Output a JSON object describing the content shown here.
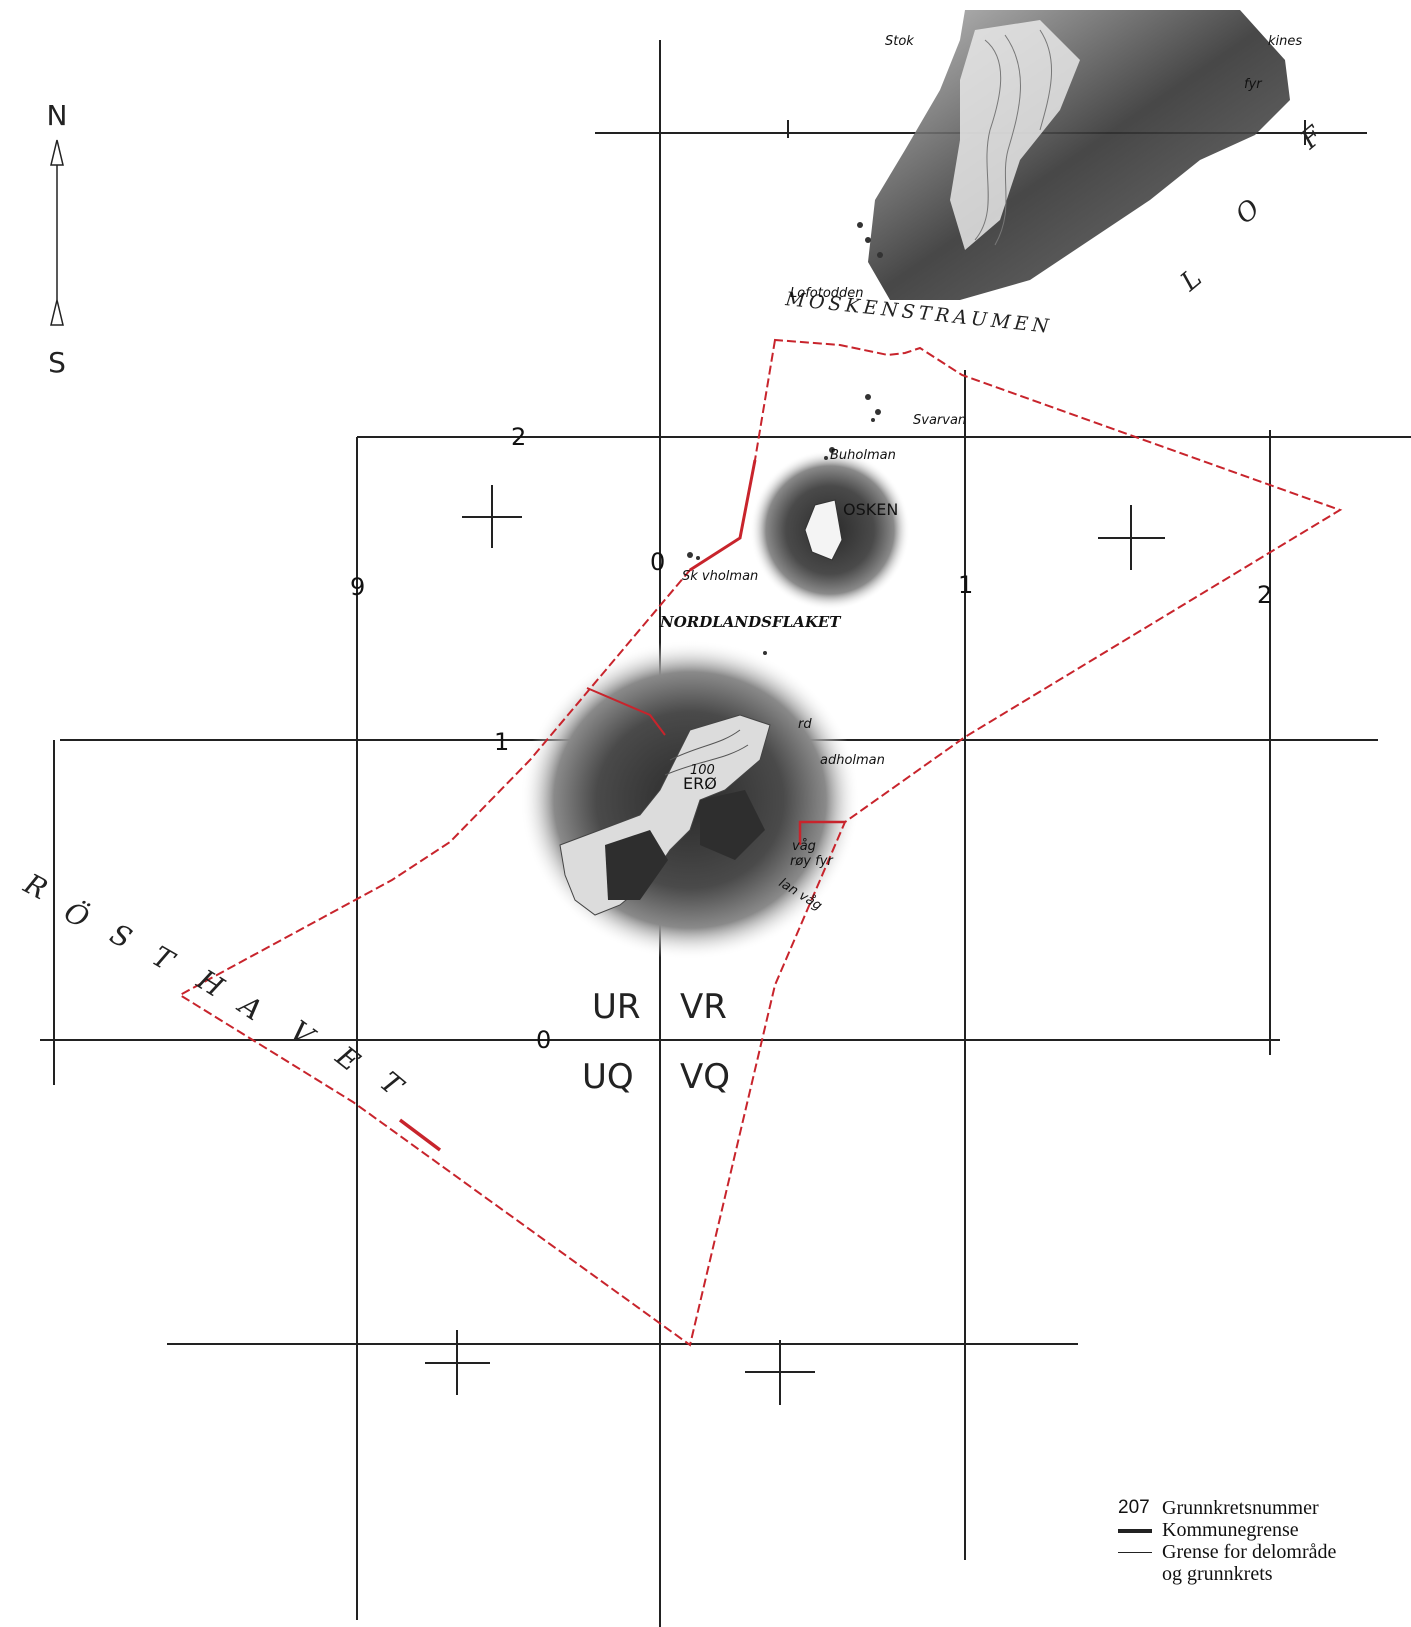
{
  "compass": {
    "north": "N",
    "south": "S"
  },
  "grid_labels": {
    "top_2": "2",
    "left_9": "9",
    "mid_0": "0",
    "mid_1": "1",
    "left_1": "1",
    "right_2": "2",
    "bottom_0": "0"
  },
  "squares": [
    "UR",
    "VR",
    "UQ",
    "VQ"
  ],
  "sea_names": {
    "rosthavet": [
      "R",
      "Ö",
      "S",
      "T",
      "H",
      "A",
      "V",
      "E",
      "T"
    ],
    "moskenstraumen": "MOSKENSTRAUMEN",
    "lofoten": [
      "L",
      "O",
      "F"
    ],
    "nordlandsflaket": "NORDLANDSFLAKET"
  },
  "places": {
    "lofotodden": "Lofotodden",
    "stok": "Stok",
    "kines": "kines",
    "fyr_top": "fyr",
    "svarvan": "Svarvan",
    "buholman": "Buholman",
    "mosken": "OSKEN",
    "skarvholman": "Sk  vholman",
    "vaero": "ERØ",
    "contour_100": "100",
    "rd": "rd",
    "adholman": "adholman",
    "vag": "våg",
    "vaeroy_fyr": "røy fyr",
    "lan_vag": "lan våg"
  },
  "colors": {
    "boundary": "#c8242c",
    "grid": "#222222",
    "terrain": "#3a3a3a"
  },
  "legend": {
    "number": "207",
    "items": [
      "Grunnkretsnummer",
      "Kommunegrense",
      "Grense for delområde",
      "og grunnkrets"
    ]
  }
}
